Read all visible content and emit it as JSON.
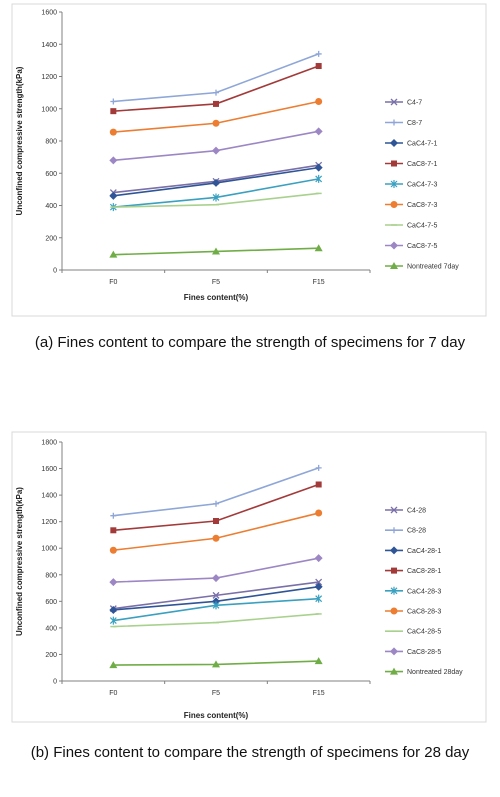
{
  "chart_data": [
    {
      "type": "line",
      "xlabel": "Fines content(%)",
      "ylabel": "Unconfined compressive strength(kPa)",
      "ylim": [
        0,
        1600
      ],
      "yticks": [
        0,
        200,
        400,
        600,
        800,
        1000,
        1200,
        1400,
        1600
      ],
      "categories": [
        "F0",
        "F5",
        "F15"
      ],
      "grid": false,
      "legend_position": "right",
      "caption": "(a) Fines content to compare the strength of specimens for 7 day",
      "series": [
        {
          "name": "C4-7",
          "color": "#7a6fa8",
          "marker": "x",
          "values": [
            480,
            550,
            650
          ]
        },
        {
          "name": "C8-7",
          "color": "#8ea6d8",
          "marker": "plus",
          "values": [
            1045,
            1100,
            1340
          ]
        },
        {
          "name": "CaC4-7-1",
          "color": "#2f5597",
          "marker": "diamond",
          "values": [
            460,
            540,
            635
          ]
        },
        {
          "name": "CaC8-7-1",
          "color": "#a33a3a",
          "marker": "square",
          "values": [
            985,
            1030,
            1265
          ]
        },
        {
          "name": "CaC4-7-3",
          "color": "#3aa0c0",
          "marker": "asterisk",
          "values": [
            390,
            450,
            565
          ]
        },
        {
          "name": "CaC8-7-3",
          "color": "#ec7d31",
          "marker": "circle",
          "values": [
            855,
            910,
            1045
          ]
        },
        {
          "name": "CaC4-7-5",
          "color": "#a9d18e",
          "marker": "dash",
          "values": [
            390,
            405,
            475
          ]
        },
        {
          "name": "CaC8-7-5",
          "color": "#9c87c4",
          "marker": "diamond",
          "values": [
            680,
            740,
            860
          ]
        },
        {
          "name": "Nontreated 7day",
          "color": "#70ad47",
          "marker": "triangle",
          "values": [
            95,
            115,
            135
          ]
        }
      ]
    },
    {
      "type": "line",
      "xlabel": "Fines content(%)",
      "ylabel": "Unconfined compressive strength(kPa)",
      "ylim": [
        0,
        1800
      ],
      "yticks": [
        0,
        200,
        400,
        600,
        800,
        1000,
        1200,
        1400,
        1600,
        1800
      ],
      "categories": [
        "F0",
        "F5",
        "F15"
      ],
      "grid": false,
      "legend_position": "right",
      "caption": "(b) Fines content to compare the strength of specimens for 28 day",
      "series": [
        {
          "name": "C4-28",
          "color": "#7a6fa8",
          "marker": "x",
          "values": [
            545,
            645,
            745
          ]
        },
        {
          "name": "C8-28",
          "color": "#8ea6d8",
          "marker": "plus",
          "values": [
            1245,
            1335,
            1605
          ]
        },
        {
          "name": "CaC4-28-1",
          "color": "#2f5597",
          "marker": "diamond",
          "values": [
            535,
            600,
            710
          ]
        },
        {
          "name": "CaC8-28-1",
          "color": "#a33a3a",
          "marker": "square",
          "values": [
            1135,
            1205,
            1480
          ]
        },
        {
          "name": "CaC4-28-3",
          "color": "#3aa0c0",
          "marker": "asterisk",
          "values": [
            455,
            570,
            620
          ]
        },
        {
          "name": "CaC8-28-3",
          "color": "#ec7d31",
          "marker": "circle",
          "values": [
            985,
            1075,
            1265
          ]
        },
        {
          "name": "CaC4-28-5",
          "color": "#a9d18e",
          "marker": "dash",
          "values": [
            410,
            440,
            505
          ]
        },
        {
          "name": "CaC8-28-5",
          "color": "#9c87c4",
          "marker": "diamond",
          "values": [
            745,
            775,
            925
          ]
        },
        {
          "name": "Nontreated 28day",
          "color": "#70ad47",
          "marker": "triangle",
          "values": [
            120,
            125,
            150
          ]
        }
      ]
    }
  ]
}
